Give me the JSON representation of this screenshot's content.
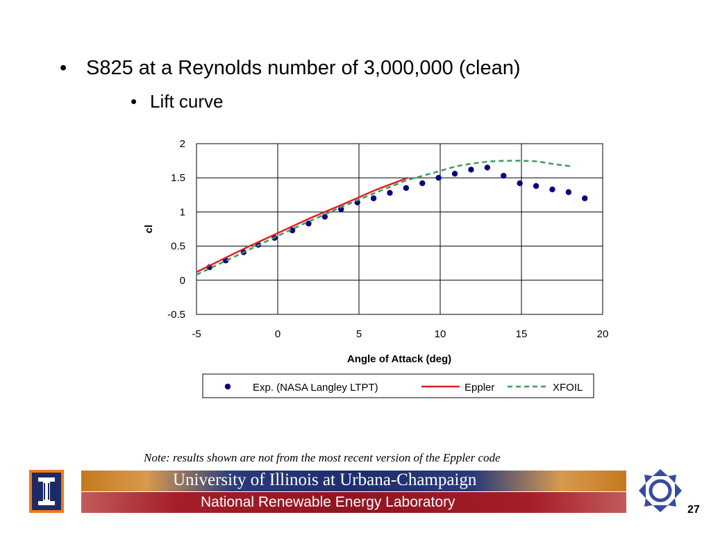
{
  "slide": {
    "bullet_main_marker": "•",
    "bullet_main": "S825 at a Reynolds number of 3,000,000 (clean)",
    "bullet_sub_marker": "•",
    "bullet_sub": "Lift curve",
    "note": "Note: results shown are not from the most recent version of the Eppler code",
    "page_number": "27"
  },
  "footer": {
    "university": "University of Illinois at Urbana-Champaign",
    "lab": "National Renewable Energy Laboratory",
    "top_banner_color": "#1f2d6e",
    "bottom_banner_color": "#8f1520",
    "icons": [
      "uiuc-logo-icon",
      "nrel-logo-icon"
    ]
  },
  "chart_data": {
    "type": "scatter",
    "title": "",
    "xlabel": "Angle of Attack (deg)",
    "ylabel": "cl",
    "xlim": [
      -5,
      20
    ],
    "ylim": [
      -0.5,
      2
    ],
    "xticks": [
      "-5",
      "0",
      "5",
      "10",
      "15",
      "20"
    ],
    "yticks": [
      "-0.5",
      "0",
      "0.5",
      "1",
      "1.5",
      "2"
    ],
    "grid": true,
    "legend_position": "bottom",
    "series": [
      {
        "name": "Exp. (NASA Langley LTPT)",
        "style": "markers",
        "color": "#000080",
        "x": [
          -4.2,
          -3.2,
          -2.1,
          -1.2,
          -0.2,
          0.9,
          1.9,
          2.9,
          3.9,
          4.9,
          5.9,
          6.9,
          7.9,
          8.9,
          9.9,
          10.9,
          11.9,
          12.9,
          13.9,
          14.9,
          15.9,
          16.9,
          17.9,
          18.9
        ],
        "y": [
          0.19,
          0.29,
          0.41,
          0.52,
          0.62,
          0.73,
          0.83,
          0.93,
          1.04,
          1.14,
          1.2,
          1.28,
          1.35,
          1.42,
          1.5,
          1.56,
          1.62,
          1.65,
          1.53,
          1.42,
          1.38,
          1.33,
          1.29,
          1.2
        ]
      },
      {
        "name": "Eppler",
        "style": "solid",
        "color": "#e02020",
        "x": [
          -5,
          -2,
          0,
          2,
          4,
          6,
          8
        ],
        "y": [
          0.12,
          0.47,
          0.69,
          0.91,
          1.11,
          1.32,
          1.5
        ]
      },
      {
        "name": "XFOIL",
        "style": "dashed",
        "color": "#3a9a5b",
        "x": [
          -5,
          -2,
          0,
          2,
          4,
          6,
          8,
          10,
          11,
          12,
          13,
          14,
          15,
          16,
          17,
          18
        ],
        "y": [
          0.08,
          0.42,
          0.65,
          0.87,
          1.08,
          1.28,
          1.47,
          1.6,
          1.67,
          1.71,
          1.74,
          1.75,
          1.75,
          1.74,
          1.7,
          1.67
        ]
      }
    ]
  }
}
